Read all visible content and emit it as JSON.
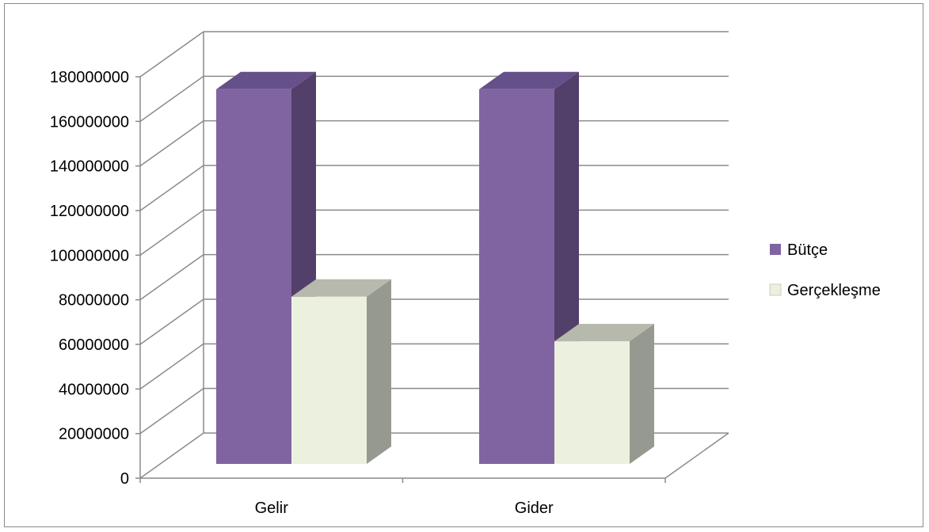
{
  "chart_data": {
    "type": "bar",
    "style": "3d-clustered-column",
    "categories": [
      "Gelir",
      "Gider"
    ],
    "series": [
      {
        "name": "Bütçe",
        "values": [
          168000000,
          168000000
        ],
        "color": "#8064a2",
        "side_color": "#523f6a",
        "top_color": "#65508a"
      },
      {
        "name": "Gerçekleşme",
        "values": [
          75000000,
          55000000
        ],
        "color": "#ebf1de",
        "side_color": "#96998f",
        "top_color": "#b6b9ab"
      }
    ],
    "ylim": [
      0,
      180000000
    ],
    "yticks": [
      "0",
      "20000000",
      "40000000",
      "60000000",
      "80000000",
      "100000000",
      "120000000",
      "140000000",
      "160000000",
      "180000000"
    ],
    "grid": true,
    "legend_position": "right",
    "gridline_color": "#8a8a8a"
  }
}
